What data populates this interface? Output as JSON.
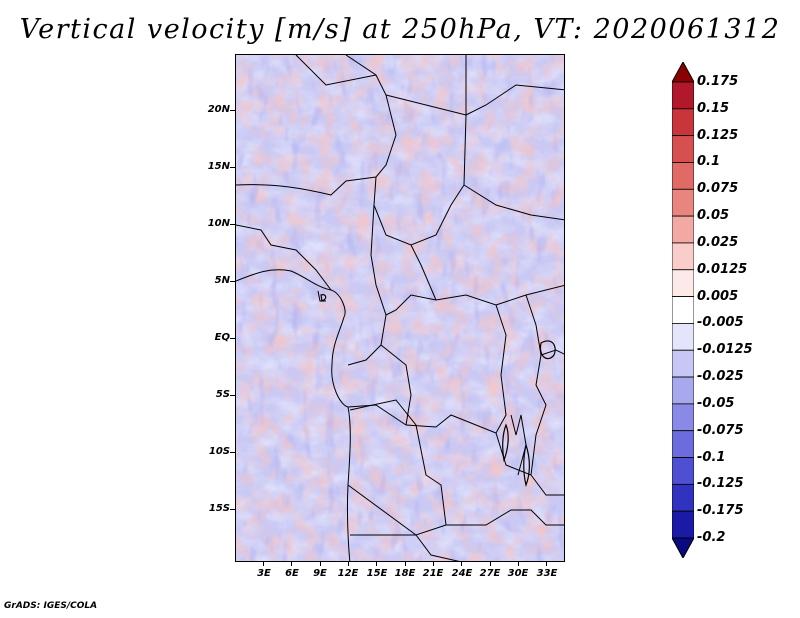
{
  "title": "Vertical velocity [m/s] at 250hPa, VT: 2020061312",
  "credit": "GrADS: IGES/COLA",
  "map": {
    "lat_labels": [
      "20N",
      "15N",
      "10N",
      "5N",
      "EQ",
      "5S",
      "10S",
      "15S"
    ],
    "lon_labels": [
      "3E",
      "6E",
      "9E",
      "12E",
      "15E",
      "18E",
      "21E",
      "24E",
      "27E",
      "30E",
      "33E"
    ]
  },
  "colorbar": {
    "labels": [
      "0.175",
      "0.15",
      "0.125",
      "0.1",
      "0.075",
      "0.05",
      "0.025",
      "0.0125",
      "0.005",
      "-0.005",
      "-0.0125",
      "-0.025",
      "-0.05",
      "-0.075",
      "-0.1",
      "-0.125",
      "-0.175",
      "-0.2"
    ],
    "colors": [
      "#8b0000",
      "#b2182b",
      "#c8353a",
      "#d6504f",
      "#e06a66",
      "#e9857f",
      "#f2a9a3",
      "#f8cdca",
      "#fdeae8",
      "#ffffff",
      "#e4e4fb",
      "#c7c7f5",
      "#a8a8ee",
      "#8a8ae6",
      "#6c6cdc",
      "#4f4fd2",
      "#3232c0",
      "#1a1aa6",
      "#0a0a80"
    ]
  }
}
